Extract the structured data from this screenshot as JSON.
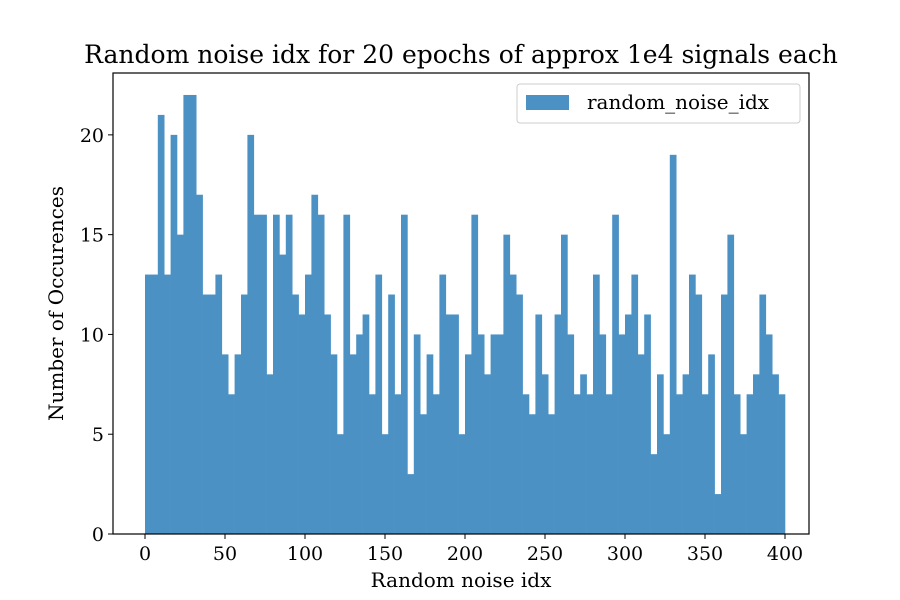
{
  "chart_data": {
    "type": "bar",
    "title": "Random noise idx for 20 epochs of approx 1e4 signals each",
    "xlabel": "Random noise idx",
    "ylabel": "Number of Occurences",
    "xlim": [
      -20,
      415
    ],
    "ylim": [
      0,
      23.1
    ],
    "xticks": [
      0,
      50,
      100,
      150,
      200,
      250,
      300,
      350,
      400
    ],
    "yticks": [
      0,
      5,
      10,
      15,
      20
    ],
    "bin_start": 0,
    "bin_width": 4,
    "legend": {
      "label": "random_noise_idx",
      "position": "top-right"
    },
    "series": [
      {
        "name": "random_noise_idx",
        "color": "#4b91c4",
        "values": [
          13,
          13,
          21,
          13,
          20,
          15,
          22,
          22,
          17,
          12,
          12,
          13,
          9,
          7,
          9,
          12,
          20,
          16,
          16,
          8,
          16,
          14,
          16,
          12,
          11,
          13,
          17,
          16,
          11,
          9,
          5,
          16,
          9,
          10,
          11,
          7,
          13,
          5,
          12,
          7,
          16,
          3,
          10,
          6,
          9,
          7,
          13,
          11,
          11,
          5,
          9,
          16,
          10,
          8,
          10,
          10,
          15,
          13,
          12,
          7,
          6,
          11,
          8,
          6,
          11,
          15,
          10,
          7,
          8,
          7,
          13,
          10,
          7,
          16,
          10,
          11,
          13,
          9,
          11,
          4,
          8,
          5,
          19,
          7,
          8,
          13,
          12,
          7,
          9,
          2,
          12,
          15,
          7,
          5,
          7,
          8,
          12,
          10,
          8,
          7
        ]
      }
    ]
  }
}
